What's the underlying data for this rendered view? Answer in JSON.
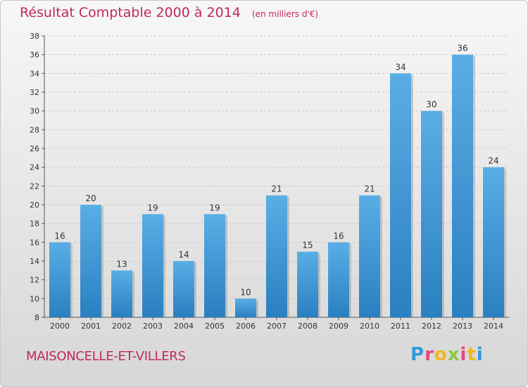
{
  "header": {
    "title": "Résultat Comptable 2000 à 2014",
    "unit": "(en milliers d'€)"
  },
  "footer": {
    "location": "MAISONCELLE-ET-VILLERS",
    "logo_letters": [
      "P",
      "r",
      "o",
      "x",
      "i",
      "t",
      "i"
    ]
  },
  "colors": {
    "title": "#c0285f",
    "bar_top": "#5aaee6",
    "bar_bottom": "#2a7fc0",
    "logo": [
      "#2e9bd6",
      "#e04b7a",
      "#f2b71b",
      "#8cc63f",
      "#e04b7a",
      "#f2b71b",
      "#2e9bd6"
    ]
  },
  "chart_data": {
    "type": "bar",
    "title": "Résultat Comptable 2000 à 2014",
    "subtitle": "(en milliers d'€)",
    "categories": [
      "2000",
      "2001",
      "2002",
      "2003",
      "2004",
      "2005",
      "2006",
      "2007",
      "2008",
      "2009",
      "2010",
      "2011",
      "2012",
      "2013",
      "2014"
    ],
    "values": [
      16,
      20,
      13,
      19,
      14,
      19,
      10,
      21,
      15,
      16,
      21,
      34,
      30,
      36,
      24
    ],
    "ylim": [
      8,
      38
    ],
    "yticks": [
      8,
      10,
      12,
      14,
      16,
      18,
      20,
      22,
      24,
      26,
      28,
      30,
      32,
      34,
      36,
      38
    ],
    "grid": true,
    "data_labels": true
  }
}
